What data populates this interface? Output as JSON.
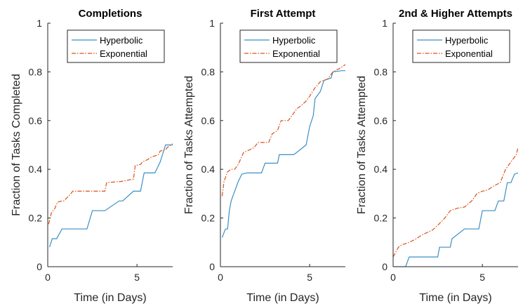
{
  "chart_data": [
    {
      "type": "line",
      "title": "Completions",
      "xlabel": "Time (in Days)",
      "ylabel": "Fraction of Tasks Completed",
      "xlim": [
        0,
        7
      ],
      "ylim": [
        0,
        1
      ],
      "xticks": [
        0,
        5
      ],
      "yticks": [
        0,
        0.2,
        0.4,
        0.6,
        0.8,
        1
      ],
      "grid": false,
      "legend_position": "top-right",
      "series": [
        {
          "name": "Hyperbolic",
          "color": "#3b8fc3",
          "style": "solid",
          "x": [
            0.1,
            0.25,
            0.25,
            0.5,
            0.5,
            0.8,
            0.8,
            2.2,
            2.2,
            2.5,
            2.5,
            3.2,
            3.2,
            4.0,
            4.0,
            4.2,
            4.2,
            4.8,
            4.8,
            5.2,
            5.2,
            5.4,
            5.4,
            6.0,
            6.0,
            6.3,
            6.3,
            6.6,
            6.6,
            7.0
          ],
          "y": [
            0.08,
            0.115,
            0.115,
            0.115,
            0.115,
            0.155,
            0.155,
            0.155,
            0.155,
            0.23,
            0.23,
            0.23,
            0.23,
            0.27,
            0.27,
            0.27,
            0.27,
            0.31,
            0.31,
            0.31,
            0.31,
            0.385,
            0.385,
            0.385,
            0.385,
            0.43,
            0.43,
            0.5,
            0.5,
            0.5
          ]
        },
        {
          "name": "Exponential",
          "color": "#d95319",
          "style": "dashdot",
          "x": [
            0.05,
            0.2,
            0.4,
            0.55,
            0.8,
            0.9,
            1.3,
            1.4,
            2.5,
            2.6,
            3.2,
            3.3,
            4.0,
            4.1,
            4.8,
            4.9,
            5.2,
            5.3,
            5.6,
            5.8,
            6.2,
            6.3,
            6.6,
            6.7,
            7.0
          ],
          "y": [
            0.175,
            0.22,
            0.24,
            0.265,
            0.27,
            0.27,
            0.3,
            0.31,
            0.31,
            0.31,
            0.31,
            0.345,
            0.35,
            0.35,
            0.36,
            0.415,
            0.42,
            0.43,
            0.44,
            0.45,
            0.46,
            0.475,
            0.48,
            0.49,
            0.505
          ]
        }
      ]
    },
    {
      "type": "line",
      "title": "First Attempt",
      "xlabel": "Time (in Days)",
      "ylabel": "Fraction of Tasks Attempted",
      "xlim": [
        0,
        7
      ],
      "ylim": [
        0,
        1
      ],
      "xticks": [
        0,
        5
      ],
      "yticks": [
        0,
        0.2,
        0.4,
        0.6,
        0.8,
        1
      ],
      "grid": false,
      "legend_position": "top-right",
      "series": [
        {
          "name": "Hyperbolic",
          "color": "#3b8fc3",
          "style": "solid",
          "x": [
            0.1,
            0.25,
            0.3,
            0.4,
            0.5,
            0.6,
            0.8,
            1.0,
            1.2,
            1.5,
            2.3,
            2.5,
            3.2,
            3.3,
            4.1,
            4.2,
            4.8,
            5.0,
            5.2,
            5.3,
            5.6,
            5.8,
            6.2,
            6.3,
            6.8,
            7.0
          ],
          "y": [
            0.12,
            0.15,
            0.155,
            0.155,
            0.23,
            0.27,
            0.31,
            0.35,
            0.38,
            0.385,
            0.385,
            0.425,
            0.425,
            0.46,
            0.46,
            0.465,
            0.5,
            0.575,
            0.62,
            0.69,
            0.72,
            0.765,
            0.775,
            0.8,
            0.805,
            0.805
          ]
        },
        {
          "name": "Exponential",
          "color": "#d95319",
          "style": "dashdot",
          "x": [
            0.1,
            0.2,
            0.4,
            0.6,
            0.8,
            1.0,
            1.3,
            1.5,
            1.9,
            2.1,
            2.7,
            2.9,
            3.2,
            3.4,
            3.8,
            4.0,
            4.3,
            4.5,
            4.8,
            5.0,
            5.3,
            5.6,
            6.0,
            6.3,
            6.7,
            7.0
          ],
          "y": [
            0.29,
            0.35,
            0.39,
            0.4,
            0.4,
            0.42,
            0.47,
            0.475,
            0.49,
            0.51,
            0.51,
            0.545,
            0.56,
            0.6,
            0.6,
            0.62,
            0.65,
            0.66,
            0.68,
            0.7,
            0.735,
            0.76,
            0.77,
            0.8,
            0.815,
            0.83
          ]
        }
      ]
    },
    {
      "type": "line",
      "title": "2nd & Higher Attempts",
      "xlabel": "Time (in Days)",
      "ylabel": "Fraction of Tasks Attempted",
      "xlim": [
        0,
        7
      ],
      "ylim": [
        0,
        1
      ],
      "xticks": [
        0,
        5
      ],
      "yticks": [
        0,
        0.2,
        0.4,
        0.6,
        0.8,
        1
      ],
      "grid": false,
      "legend_position": "top-right",
      "series": [
        {
          "name": "Hyperbolic",
          "color": "#3b8fc3",
          "style": "solid",
          "x": [
            0.0,
            0.7,
            0.9,
            2.5,
            2.6,
            3.2,
            3.3,
            4.0,
            4.2,
            4.8,
            5.0,
            5.7,
            5.9,
            6.2,
            6.4,
            6.6,
            6.8,
            7.0
          ],
          "y": [
            0.0,
            0.0,
            0.04,
            0.04,
            0.08,
            0.08,
            0.115,
            0.155,
            0.155,
            0.155,
            0.23,
            0.23,
            0.27,
            0.27,
            0.345,
            0.345,
            0.38,
            0.385
          ]
        },
        {
          "name": "Exponential",
          "color": "#d95319",
          "style": "dashdot",
          "x": [
            0.0,
            0.3,
            0.5,
            0.9,
            1.3,
            1.6,
            2.2,
            2.5,
            2.9,
            3.2,
            3.6,
            4.0,
            4.4,
            4.7,
            5.0,
            5.3,
            5.6,
            6.0,
            6.3,
            6.6,
            6.9,
            7.0
          ],
          "y": [
            0.04,
            0.08,
            0.09,
            0.1,
            0.115,
            0.13,
            0.15,
            0.17,
            0.2,
            0.23,
            0.24,
            0.245,
            0.27,
            0.3,
            0.31,
            0.315,
            0.33,
            0.345,
            0.4,
            0.43,
            0.46,
            0.49
          ]
        }
      ]
    }
  ]
}
